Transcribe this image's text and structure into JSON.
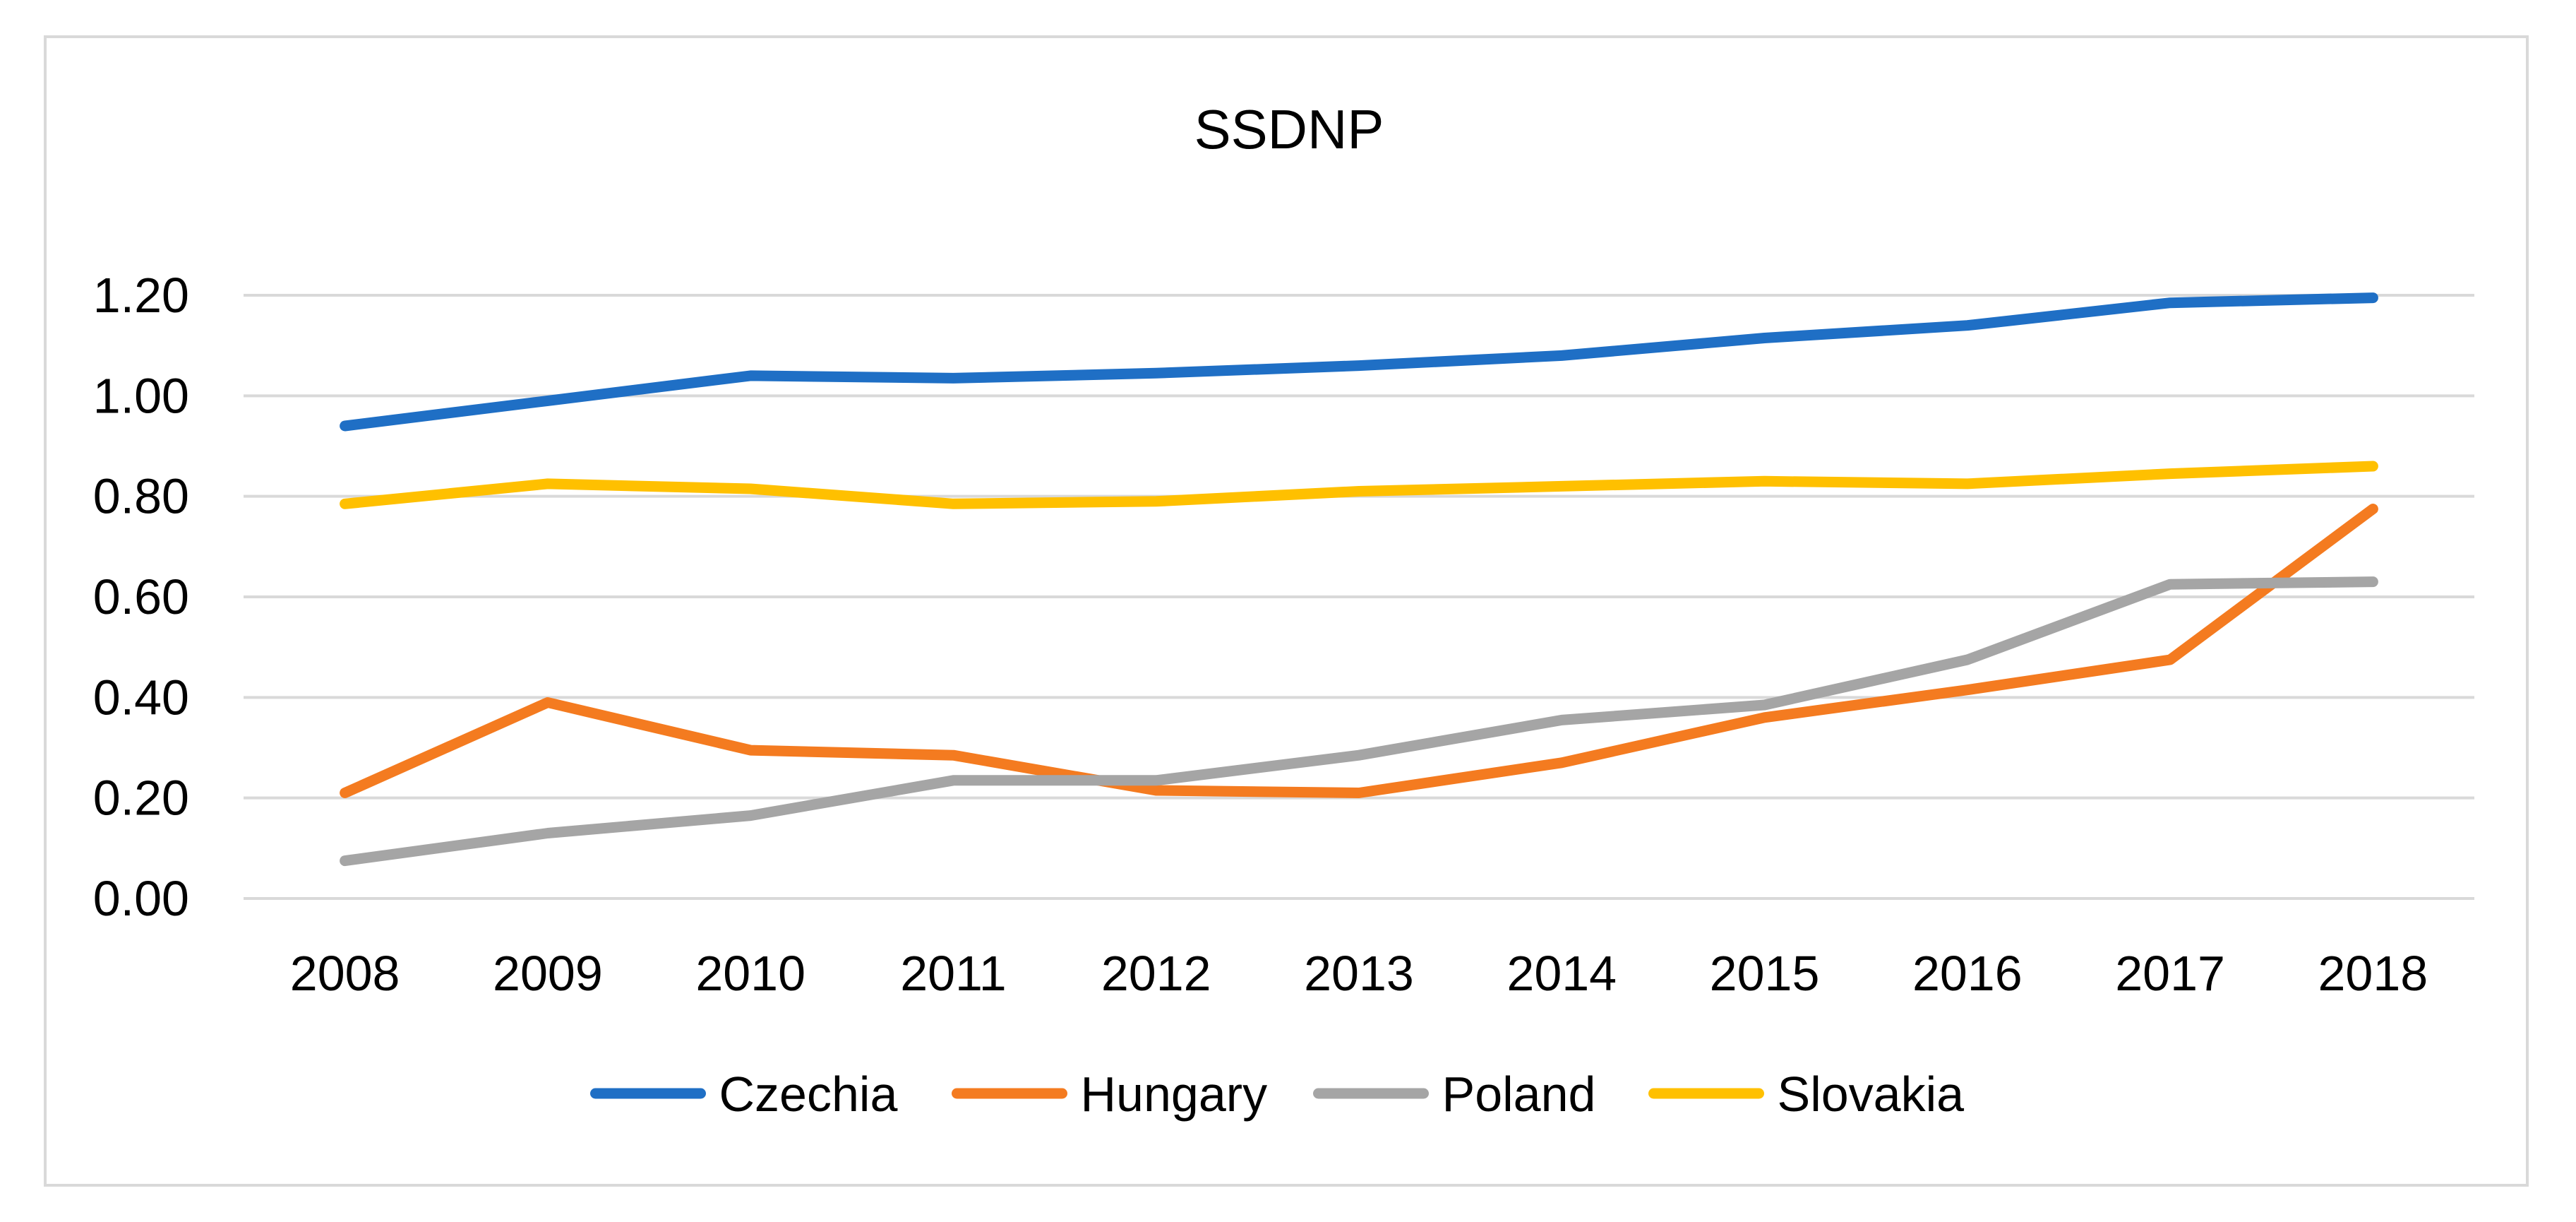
{
  "chart_data": {
    "type": "line",
    "title": "SSDNP",
    "xlabel": "",
    "ylabel": "",
    "categories": [
      "2008",
      "2009",
      "2010",
      "2011",
      "2012",
      "2013",
      "2014",
      "2015",
      "2016",
      "2017",
      "2018"
    ],
    "ylim": [
      0,
      1.2
    ],
    "yticks": [
      "0.00",
      "0.20",
      "0.40",
      "0.60",
      "0.80",
      "1.00",
      "1.20"
    ],
    "grid": true,
    "legend_position": "bottom",
    "series": [
      {
        "name": "Czechia",
        "color": "#1f6fc5",
        "values": [
          0.94,
          0.99,
          1.04,
          1.035,
          1.045,
          1.06,
          1.08,
          1.115,
          1.14,
          1.185,
          1.195
        ]
      },
      {
        "name": "Hungary",
        "color": "#f47b20",
        "values": [
          0.21,
          0.39,
          0.295,
          0.285,
          0.215,
          0.21,
          0.27,
          0.36,
          0.415,
          0.475,
          0.775
        ]
      },
      {
        "name": "Poland",
        "color": "#a5a5a5",
        "values": [
          0.075,
          0.13,
          0.165,
          0.235,
          0.235,
          0.285,
          0.355,
          0.385,
          0.475,
          0.625,
          0.63
        ]
      },
      {
        "name": "Slovakia",
        "color": "#ffc000",
        "values": [
          0.785,
          0.825,
          0.815,
          0.785,
          0.79,
          0.81,
          0.82,
          0.83,
          0.825,
          0.845,
          0.86
        ]
      }
    ]
  }
}
